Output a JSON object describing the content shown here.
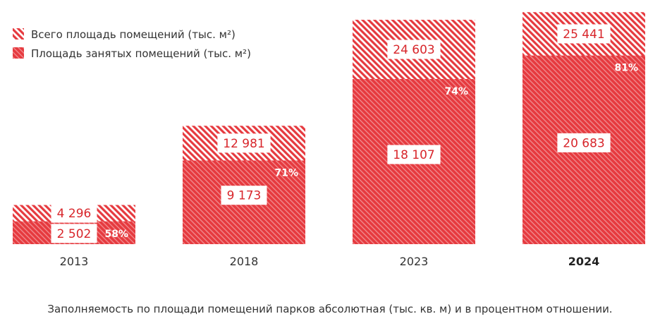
{
  "chart_data": {
    "type": "bar",
    "stacking": "overlay",
    "categories": [
      "2013",
      "2018",
      "2023",
      "2024"
    ],
    "highlight_category": "2024",
    "series": [
      {
        "name": "Всего площадь помещений (тыс. м²)",
        "values": [
          4296,
          12981,
          24603,
          25441
        ],
        "labels": [
          "4 296",
          "12 981",
          "24 603",
          "25 441"
        ],
        "pattern": "hatched-light"
      },
      {
        "name": "Площадь занятых помещений (тыс. м²)",
        "values": [
          2502,
          9173,
          18107,
          20683
        ],
        "labels": [
          "2 502",
          "9 173",
          "18 107",
          "20 683"
        ],
        "pattern": "hatched-dense"
      }
    ],
    "percentages": [
      "58%",
      "71%",
      "74%",
      "81%"
    ],
    "legend_position": "top-left",
    "grid": false,
    "ylim": [
      0,
      26000
    ],
    "colors": {
      "bar": "#e63a3f",
      "hatch": "#f4a1a3",
      "label_text": "#d8262b"
    }
  },
  "caption": "Заполняемость по площади помещений парков абсолютная (тыс. кв. м) и в процентном отношении."
}
